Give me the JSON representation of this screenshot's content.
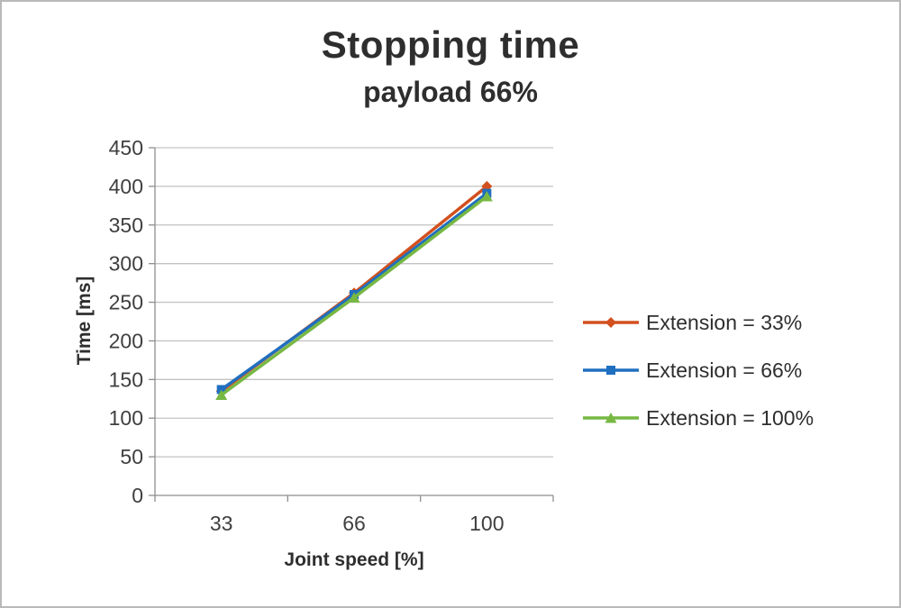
{
  "chart_data": {
    "type": "line",
    "title": "Stopping time",
    "subtitle": "payload 66%",
    "xlabel": "Joint speed [%]",
    "ylabel": "Time [ms]",
    "categories": [
      "33",
      "66",
      "100"
    ],
    "series": [
      {
        "name": "Extension = 33%",
        "values": [
          135,
          262,
          400
        ],
        "color": "#d2501e",
        "marker": "diamond"
      },
      {
        "name": "Extension = 66%",
        "values": [
          137,
          260,
          391
        ],
        "color": "#1f6fc0",
        "marker": "square"
      },
      {
        "name": "Extension = 100%",
        "values": [
          130,
          256,
          387
        ],
        "color": "#77b843",
        "marker": "triangle"
      }
    ],
    "ylim": [
      0,
      450
    ],
    "ytick_step": 50,
    "grid": true,
    "legend_position": "right",
    "colors": {
      "gridline": "#c3c3c3",
      "axis": "#8e8e8e",
      "tick_label": "#3f3f3f"
    }
  }
}
